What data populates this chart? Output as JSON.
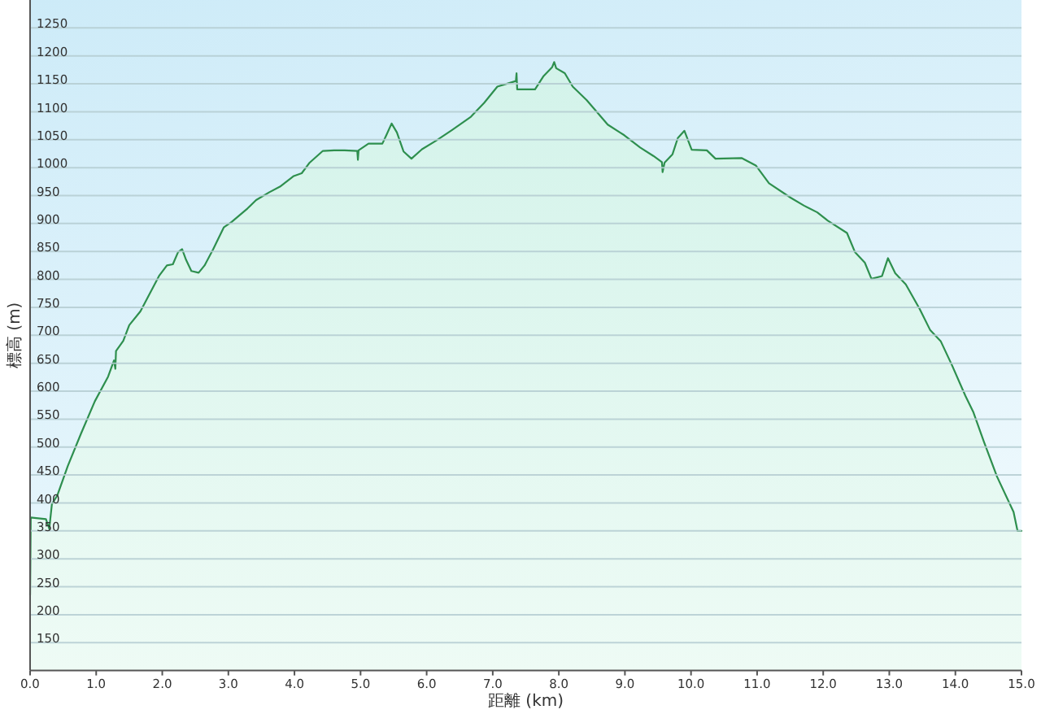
{
  "chart_data": {
    "type": "area",
    "xlabel": "距離 (km)",
    "ylabel": "標高 (m)",
    "x": [
      0,
      0.01,
      0.24,
      0.29,
      0.33,
      0.41,
      0.57,
      0.77,
      0.98,
      1.18,
      1.27,
      1.29,
      1.3,
      1.41,
      1.5,
      1.67,
      1.95,
      2.07,
      2.16,
      2.24,
      2.3,
      2.36,
      2.44,
      2.55,
      2.64,
      2.77,
      2.93,
      3.05,
      3.29,
      3.42,
      3.62,
      3.78,
      3.99,
      4.11,
      4.23,
      4.43,
      4.6,
      4.76,
      4.95,
      4.96,
      4.97,
      5.12,
      5.33,
      5.39,
      5.47,
      5.55,
      5.65,
      5.77,
      5.93,
      6.14,
      6.38,
      6.67,
      6.87,
      7.07,
      7.35,
      7.36,
      7.37,
      7.64,
      7.77,
      7.9,
      7.93,
      7.96,
      8.09,
      8.21,
      8.42,
      8.74,
      8.99,
      9.23,
      9.43,
      9.56,
      9.57,
      9.6,
      9.72,
      9.8,
      9.9,
      10.01,
      10.24,
      10.37,
      10.77,
      10.98,
      11.18,
      11.51,
      11.71,
      11.91,
      12.07,
      12.36,
      12.48,
      12.63,
      12.73,
      12.89,
      12.98,
      13.09,
      13.25,
      13.46,
      13.62,
      13.78,
      13.95,
      14.15,
      14.27,
      14.43,
      14.63,
      14.88,
      14.94,
      15
    ],
    "series": [
      {
        "color": "#2e8f4e",
        "values": [
          235,
          374,
          371,
          354,
          398,
          413,
          466,
          524,
          582,
          626,
          655,
          640,
          672,
          690,
          718,
          743,
          806,
          825,
          827,
          849,
          854,
          835,
          815,
          812,
          825,
          854,
          893,
          903,
          927,
          942,
          956,
          966,
          985,
          990,
          1009,
          1030,
          1031,
          1031,
          1030,
          1014,
          1031,
          1043,
          1043,
          1058,
          1079,
          1063,
          1029,
          1016,
          1033,
          1048,
          1067,
          1091,
          1116,
          1145,
          1155,
          1169,
          1140,
          1140,
          1164,
          1180,
          1189,
          1178,
          1169,
          1145,
          1121,
          1077,
          1058,
          1036,
          1021,
          1010,
          992,
          1009,
          1024,
          1053,
          1066,
          1032,
          1031,
          1016,
          1017,
          1004,
          972,
          946,
          932,
          920,
          905,
          883,
          849,
          830,
          801,
          806,
          838,
          811,
          791,
          747,
          709,
          689,
          646,
          592,
          563,
          510,
          447,
          384,
          350,
          350
        ]
      }
    ],
    "xlim": [
      0,
      15
    ],
    "xticks": [
      {
        "value": 0,
        "label": "0.0"
      },
      {
        "value": 1,
        "label": "1.0"
      },
      {
        "value": 2,
        "label": "2.0"
      },
      {
        "value": 3,
        "label": "3.0"
      },
      {
        "value": 4,
        "label": "4.0"
      },
      {
        "value": 5,
        "label": "5.0"
      },
      {
        "value": 6,
        "label": "6.0"
      },
      {
        "value": 7,
        "label": "7.0"
      },
      {
        "value": 8,
        "label": "8.0"
      },
      {
        "value": 9,
        "label": "9.0"
      },
      {
        "value": 10,
        "label": "10.0"
      },
      {
        "value": 11,
        "label": "11.0"
      },
      {
        "value": 12,
        "label": "12.0"
      },
      {
        "value": 13,
        "label": "13.0"
      },
      {
        "value": 14,
        "label": "14.0"
      },
      {
        "value": 15,
        "label": "15.0"
      }
    ],
    "ylim": [
      100,
      1300
    ],
    "yticks": [
      150,
      200,
      250,
      300,
      350,
      400,
      450,
      500,
      550,
      600,
      650,
      700,
      750,
      800,
      850,
      900,
      950,
      1000,
      1050,
      1100,
      1150,
      1200,
      1250
    ],
    "grid": "y"
  }
}
